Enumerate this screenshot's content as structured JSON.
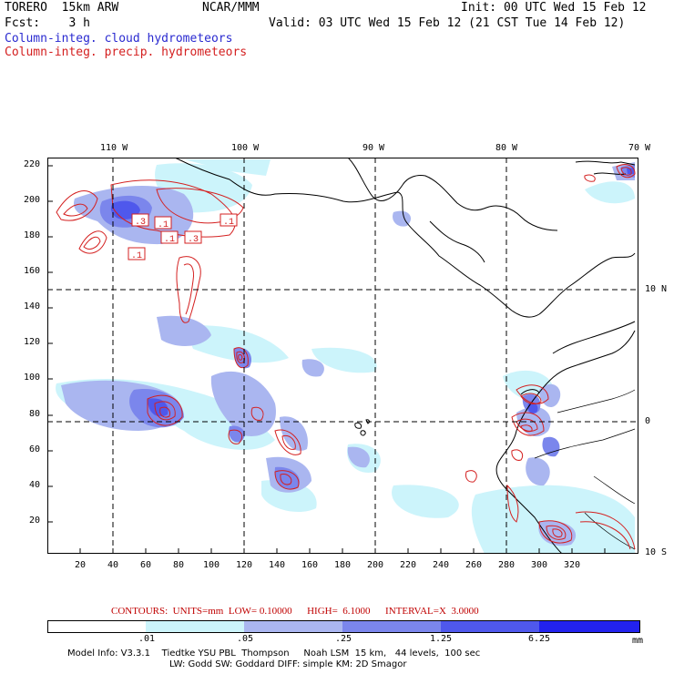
{
  "header": {
    "model": "TORERO  15km ARW",
    "org": "NCAR/MMM",
    "init": "Init: 00 UTC Wed 15 Feb 12",
    "fcst": "Fcst:    3 h",
    "valid": "Valid: 03 UTC Wed 15 Feb 12 (21 CST Tue 14 Feb 12)",
    "legend_cloud": "Column-integ. cloud hydrometeors",
    "legend_precip": "Column-integ. precip. hydrometeors"
  },
  "colors": {
    "cloud": "#2a2ad0",
    "precip": "#d42020",
    "shade_levels": [
      "#ffffff",
      "#ccf4fb",
      "#aab6f0",
      "#7b86ec",
      "#4f58ec",
      "#2222ee"
    ]
  },
  "map": {
    "lon_labels": [
      "110 W",
      "100 W",
      "90 W",
      "80 W",
      "70 W"
    ],
    "lat_labels": [
      "10 N",
      "0",
      "10 S"
    ],
    "x_ticks": [
      "20",
      "40",
      "60",
      "80",
      "100",
      "120",
      "140",
      "160",
      "180",
      "200",
      "220",
      "240",
      "260",
      "280",
      "300",
      "320"
    ],
    "y_ticks": [
      "220",
      "200",
      "180",
      "160",
      "140",
      "120",
      "100",
      "80",
      "60",
      "40",
      "20"
    ],
    "contour_labels": [
      ".3",
      ".1",
      ".1",
      ".3",
      ".1",
      ".1"
    ]
  },
  "contours_line": {
    "text": "CONTOURS:  UNITS=mm  LOW= 0.10000      HIGH=  6.1000      INTERVAL=X  3.0000"
  },
  "colorbar": {
    "labels": [
      ".01",
      ".05",
      ".25",
      "1.25",
      "6.25"
    ],
    "units": "mm"
  },
  "footer": {
    "line1": "Model Info: V3.3.1    Tiedtke YSU PBL  Thompson     Noah LSM  15 km,   44 levels,  100 sec",
    "line2": "LW: Godd SW: Goddard DIFF: simple KM: 2D Smagor"
  }
}
